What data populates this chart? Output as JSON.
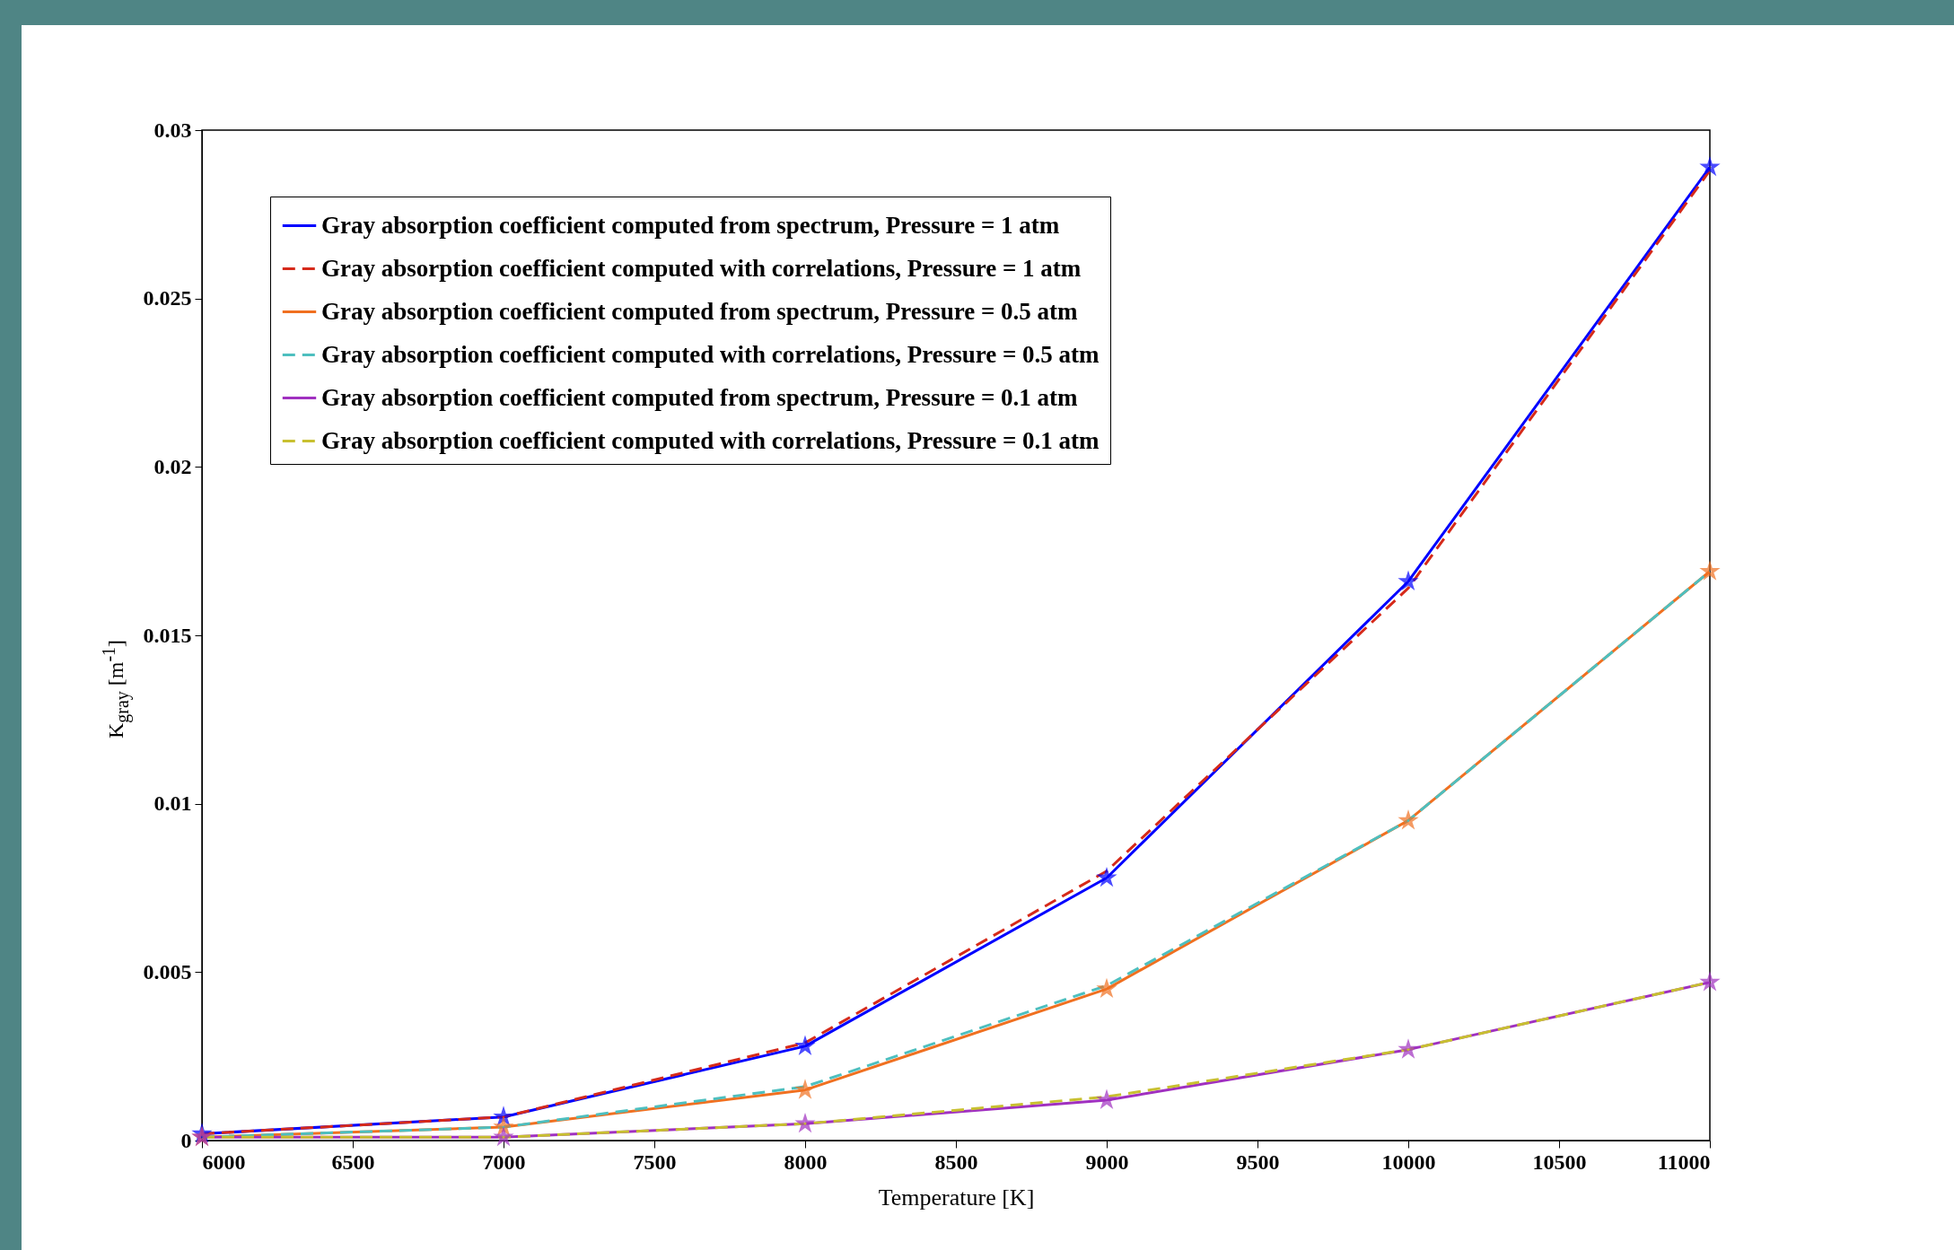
{
  "chart_data": {
    "type": "line",
    "xlabel": "Temperature [K]",
    "ylabel": "K$_{gray}$ [m$^{-1}$]",
    "x": [
      6000,
      7000,
      8000,
      9000,
      10000,
      11000
    ],
    "xlim": [
      6000,
      11000
    ],
    "xticks": [
      6000,
      6500,
      7000,
      7500,
      8000,
      8500,
      9000,
      9500,
      10000,
      10500,
      11000
    ],
    "ylim": [
      0,
      0.03
    ],
    "yticks": [
      0,
      0.005,
      0.01,
      0.015,
      0.02,
      0.025,
      0.03
    ],
    "grid": false,
    "legend": "top left",
    "series": [
      {
        "name": "Gray absorption coefficient computed from spectrum, Pressure = 1 atm",
        "color": "#0000ff",
        "marker": "star",
        "line_style": "solid",
        "values": [
          0.0002,
          0.0007,
          0.0028,
          0.0078,
          0.0166,
          0.0289
        ]
      },
      {
        "name": "Gray absorption coefficient computed with correlations, Pressure = 1 atm",
        "color": "#d62a1a",
        "marker": "none",
        "line_style": "dashed",
        "values": [
          0.0002,
          0.0007,
          0.0029,
          0.008,
          0.0164,
          0.0288
        ]
      },
      {
        "name": "Gray absorption coefficient computed from spectrum, Pressure = 0.5 atm",
        "color": "#f07020",
        "marker": "star",
        "line_style": "solid",
        "values": [
          0.0001,
          0.0004,
          0.0015,
          0.0045,
          0.0095,
          0.0169
        ]
      },
      {
        "name": "Gray absorption coefficient computed with correlations, Pressure = 0.5 atm",
        "color": "#4dbfbf",
        "marker": "none",
        "line_style": "dashed",
        "values": [
          0.0001,
          0.0004,
          0.0016,
          0.0046,
          0.0095,
          0.0169
        ]
      },
      {
        "name": "Gray absorption coefficient computed from spectrum, Pressure = 0.1 atm",
        "color": "#a030c0",
        "marker": "star",
        "line_style": "solid",
        "values": [
          0.0001,
          0.0001,
          0.0005,
          0.0012,
          0.0027,
          0.0047
        ]
      },
      {
        "name": "Gray absorption coefficient computed with correlations, Pressure = 0.1 atm",
        "color": "#c8c030",
        "marker": "none",
        "line_style": "dashed",
        "values": [
          0.0001,
          0.0001,
          0.0005,
          0.0013,
          0.0027,
          0.0047
        ]
      }
    ]
  }
}
